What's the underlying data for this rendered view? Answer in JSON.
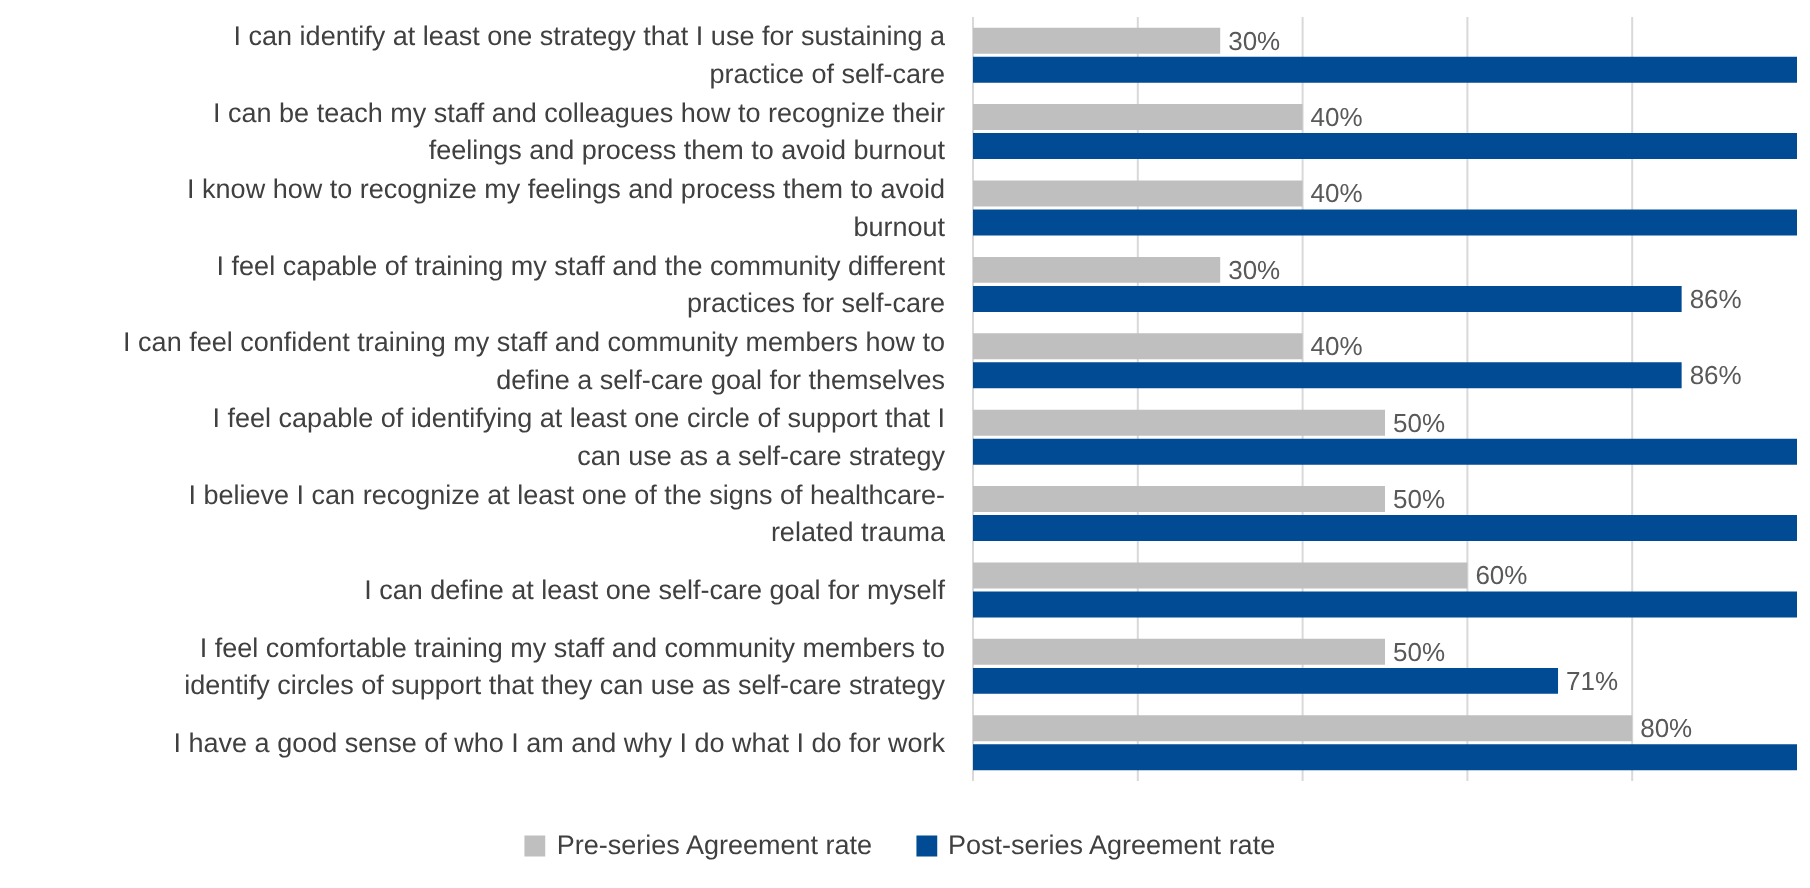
{
  "chart_data": {
    "type": "bar",
    "orientation": "horizontal",
    "categories": [
      "I can identify at least one strategy that I use for sustaining a practice of self-care",
      "I can be teach my staff and colleagues how to recognize their feelings and process them to avoid burnout",
      "I know how to recognize my feelings and process them to avoid burnout",
      "I feel capable of training my staff and the community different practices for self-care",
      "I can feel confident training my staff and community members how to define a self-care goal for themselves",
      "I feel capable of identifying at least one circle of support that I can use as a self-care strategy",
      "I believe I can recognize at least one of the signs of healthcare-related trauma",
      "I can define at least one self-care goal for myself",
      "I feel comfortable training my staff and community members to identify circles of support that they can use as self-care strategy",
      "I have a good sense of who I am and why I do what I do for work"
    ],
    "series": [
      {
        "name": "Pre-series Agreement rate",
        "color": "#bfbfbf",
        "values": [
          30,
          40,
          40,
          30,
          40,
          50,
          50,
          60,
          50,
          80
        ],
        "value_labels": [
          "30%",
          "40%",
          "40%",
          "30%",
          "40%",
          "50%",
          "50%",
          "60%",
          "50%",
          "80%"
        ]
      },
      {
        "name": "Post-series Agreement rate",
        "color": "#004b93",
        "values": [
          100,
          100,
          100,
          86,
          86,
          100,
          100,
          100,
          71,
          100
        ],
        "value_labels": [
          null,
          null,
          null,
          "86%",
          "86%",
          null,
          null,
          null,
          "71%",
          null
        ]
      }
    ],
    "xlim": [
      0,
      100
    ],
    "xticks": [
      {
        "value": 0,
        "label": null
      },
      {
        "value": 20,
        "label": null
      },
      {
        "value": 40,
        "label": null
      },
      {
        "value": 60,
        "label": null
      },
      {
        "value": 80,
        "label": null
      }
    ],
    "tick_labels": "y",
    "grid": "x",
    "legend": "bottom"
  }
}
